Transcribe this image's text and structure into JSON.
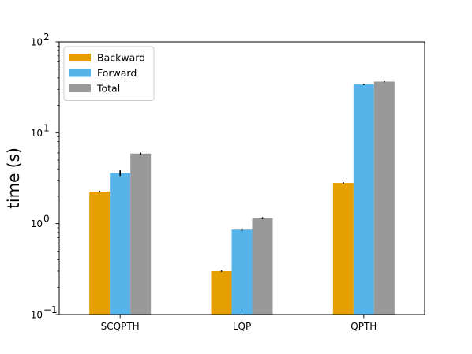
{
  "chart_data": {
    "type": "bar",
    "title": "",
    "xlabel": "",
    "ylabel": "time (s)",
    "yscale": "log",
    "ylim": [
      0.1,
      100
    ],
    "yticks": [
      {
        "value": 0.1,
        "base": "10",
        "exp": "−1"
      },
      {
        "value": 1,
        "base": "10",
        "exp": "0"
      },
      {
        "value": 10,
        "base": "10",
        "exp": "1"
      },
      {
        "value": 100,
        "base": "10",
        "exp": "2"
      }
    ],
    "categories": [
      "SCQPTH",
      "LQP",
      "QPTH"
    ],
    "series": [
      {
        "name": "Backward",
        "color": "#E69F00",
        "values": [
          2.25,
          0.3,
          2.8
        ],
        "errors": [
          0.05,
          0.005,
          0.06
        ]
      },
      {
        "name": "Forward",
        "color": "#56B4E9",
        "values": [
          3.6,
          0.86,
          34.0
        ],
        "errors": [
          0.25,
          0.03,
          0.5
        ]
      },
      {
        "name": "Total",
        "color": "#999999",
        "values": [
          5.9,
          1.15,
          36.5
        ],
        "errors": [
          0.15,
          0.03,
          0.5
        ]
      }
    ],
    "grid": false,
    "legend_position": "top-left"
  }
}
